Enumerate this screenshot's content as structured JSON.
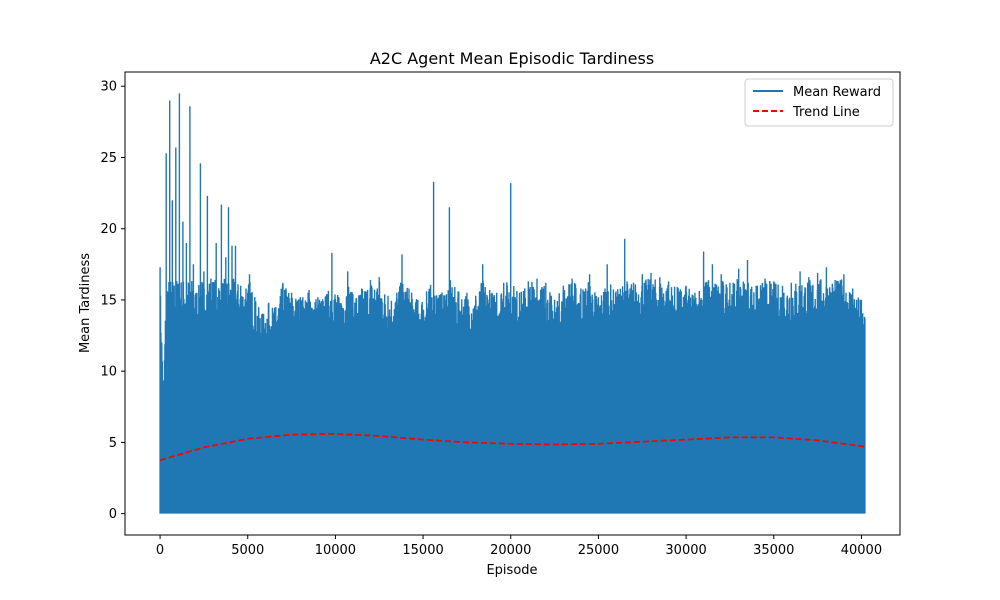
{
  "chart_data": {
    "type": "line",
    "title": "A2C Agent Mean Episodic Tardiness",
    "xlabel": "Episode",
    "ylabel": "Mean Tardiness",
    "xlim": [
      -2000,
      42200
    ],
    "ylim": [
      -1.5,
      31.0
    ],
    "xticks": [
      0,
      5000,
      10000,
      15000,
      20000,
      25000,
      30000,
      35000,
      40000
    ],
    "yticks": [
      0,
      5,
      10,
      15,
      20,
      25,
      30
    ],
    "grid": false,
    "legend_position": "upper right",
    "series": [
      {
        "name": "Mean Reward",
        "color": "#1f77b4",
        "style": "solid",
        "min_value": 0,
        "x_range": [
          0,
          40200
        ],
        "peaks": [
          [
            0,
            17.3
          ],
          [
            200,
            8.8
          ],
          [
            350,
            25.3
          ],
          [
            550,
            29.0
          ],
          [
            700,
            22.0
          ],
          [
            900,
            25.7
          ],
          [
            1100,
            29.5
          ],
          [
            1300,
            20.5
          ],
          [
            1500,
            19.0
          ],
          [
            1700,
            28.6
          ],
          [
            1900,
            17.5
          ],
          [
            2100,
            15.5
          ],
          [
            2300,
            24.6
          ],
          [
            2500,
            17.0
          ],
          [
            2700,
            22.3
          ],
          [
            2900,
            16.5
          ],
          [
            3200,
            19.0
          ],
          [
            3500,
            21.7
          ],
          [
            3750,
            18.0
          ],
          [
            3900,
            21.5
          ],
          [
            4100,
            18.8
          ],
          [
            4300,
            18.8
          ],
          [
            4600,
            16.0
          ],
          [
            4900,
            15.8
          ],
          [
            5100,
            16.8
          ],
          [
            5400,
            15.2
          ],
          [
            5800,
            14.0
          ],
          [
            6200,
            14.8
          ],
          [
            6600,
            14.5
          ],
          [
            7000,
            16.2
          ],
          [
            7500,
            15.5
          ],
          [
            8000,
            15.2
          ],
          [
            8500,
            15.7
          ],
          [
            9000,
            15.2
          ],
          [
            9500,
            15.4
          ],
          [
            9800,
            18.3
          ],
          [
            10200,
            15.2
          ],
          [
            10700,
            17.0
          ],
          [
            11000,
            15.4
          ],
          [
            11500,
            15.8
          ],
          [
            12000,
            16.4
          ],
          [
            12500,
            16.6
          ],
          [
            13000,
            15.3
          ],
          [
            13500,
            15.5
          ],
          [
            13800,
            18.2
          ],
          [
            14200,
            15.8
          ],
          [
            14700,
            15.0
          ],
          [
            15200,
            15.6
          ],
          [
            15600,
            23.3
          ],
          [
            16000,
            15.4
          ],
          [
            16500,
            21.5
          ],
          [
            17000,
            15.6
          ],
          [
            17500,
            15.5
          ],
          [
            18000,
            15.3
          ],
          [
            18400,
            17.5
          ],
          [
            18800,
            15.7
          ],
          [
            19200,
            15.5
          ],
          [
            19600,
            16.2
          ],
          [
            20000,
            23.2
          ],
          [
            20500,
            15.5
          ],
          [
            21000,
            16.3
          ],
          [
            21500,
            16.5
          ],
          [
            22000,
            16.2
          ],
          [
            22500,
            15.0
          ],
          [
            23000,
            16.0
          ],
          [
            23500,
            16.5
          ],
          [
            24000,
            15.8
          ],
          [
            24500,
            16.8
          ],
          [
            25000,
            15.2
          ],
          [
            25500,
            17.5
          ],
          [
            26000,
            15.6
          ],
          [
            26500,
            19.3
          ],
          [
            27000,
            16.2
          ],
          [
            27500,
            16.8
          ],
          [
            28000,
            16.9
          ],
          [
            28500,
            16.6
          ],
          [
            29000,
            16.3
          ],
          [
            29500,
            15.9
          ],
          [
            30000,
            16.0
          ],
          [
            30500,
            15.5
          ],
          [
            31000,
            18.4
          ],
          [
            31500,
            17.5
          ],
          [
            32000,
            16.8
          ],
          [
            32500,
            16.2
          ],
          [
            33000,
            17.2
          ],
          [
            33500,
            17.8
          ],
          [
            34000,
            16.0
          ],
          [
            34500,
            16.5
          ],
          [
            35000,
            16.3
          ],
          [
            35500,
            16.0
          ],
          [
            36000,
            16.2
          ],
          [
            36500,
            17.0
          ],
          [
            37000,
            16.6
          ],
          [
            37500,
            16.9
          ],
          [
            38000,
            17.3
          ],
          [
            38500,
            16.4
          ],
          [
            39000,
            16.8
          ],
          [
            39500,
            15.8
          ],
          [
            40000,
            15.0
          ],
          [
            40200,
            13.7
          ]
        ]
      },
      {
        "name": "Trend Line",
        "color": "#ff0000",
        "style": "dashed",
        "x": [
          0,
          2500,
          5000,
          7500,
          10000,
          12500,
          15000,
          17500,
          20000,
          22500,
          25000,
          27500,
          30000,
          32500,
          35000,
          37500,
          40200
        ],
        "values": [
          3.75,
          4.65,
          5.25,
          5.55,
          5.6,
          5.45,
          5.2,
          5.0,
          4.9,
          4.85,
          4.9,
          5.05,
          5.2,
          5.35,
          5.35,
          5.15,
          4.7
        ]
      }
    ]
  }
}
